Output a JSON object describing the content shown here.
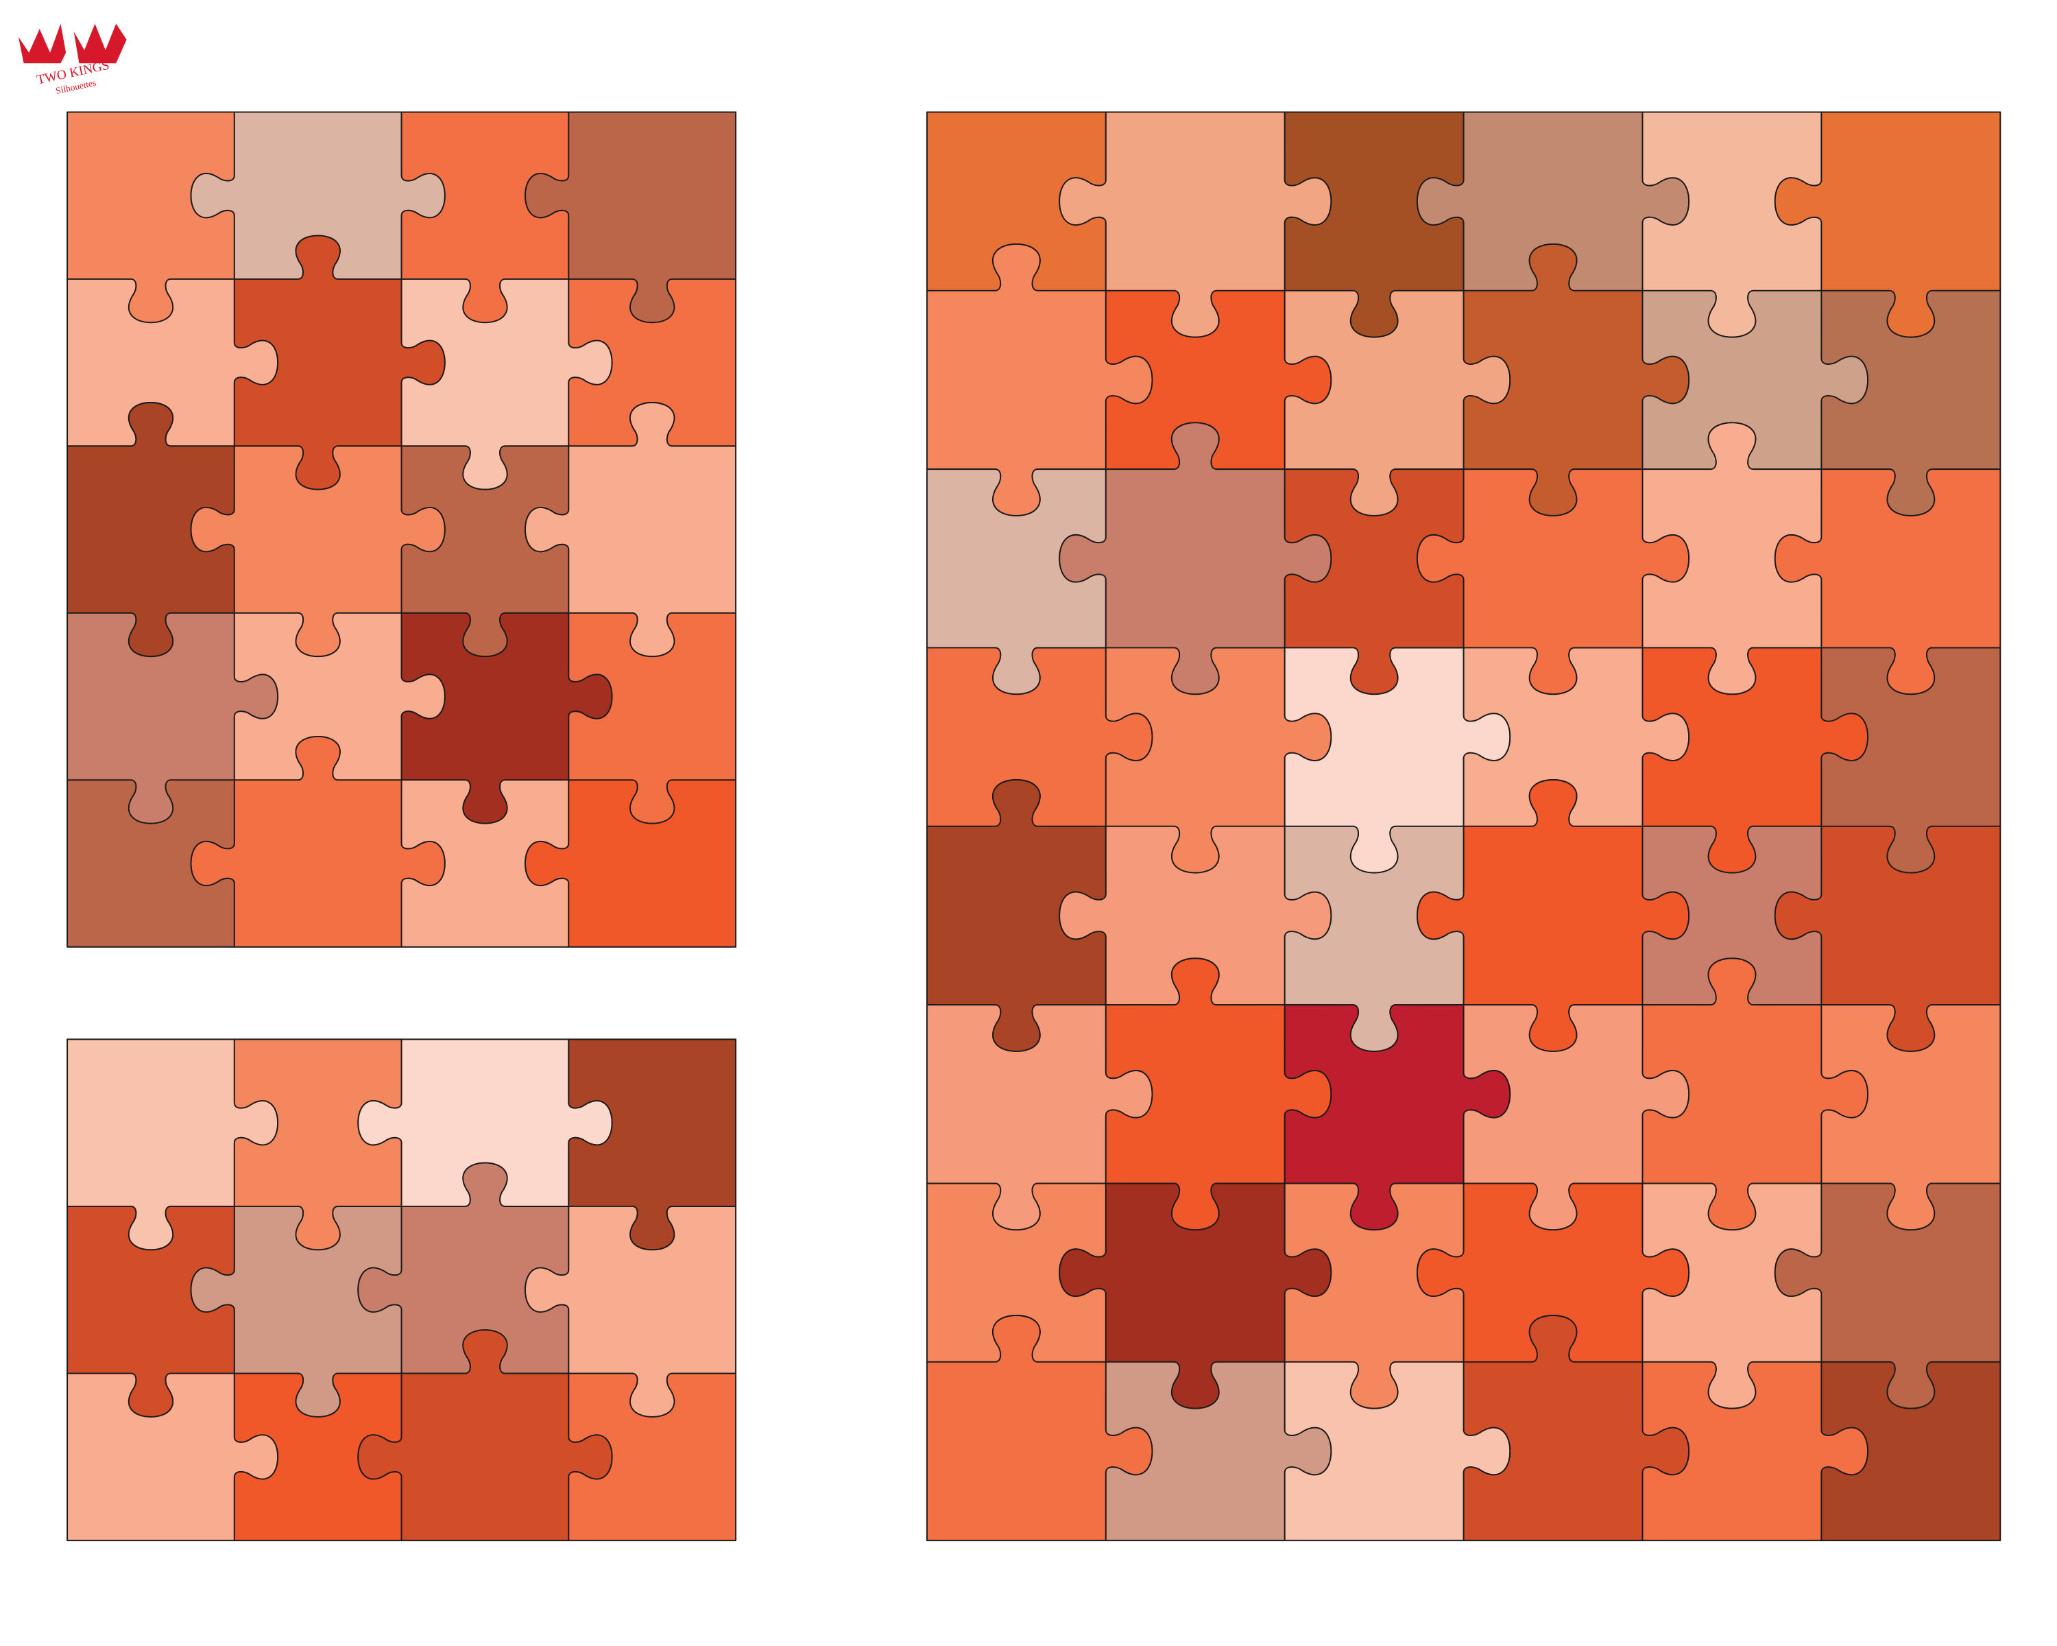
{
  "logo": {
    "name": "TWO KINGS",
    "tagline": "Silhouettes"
  }
}
